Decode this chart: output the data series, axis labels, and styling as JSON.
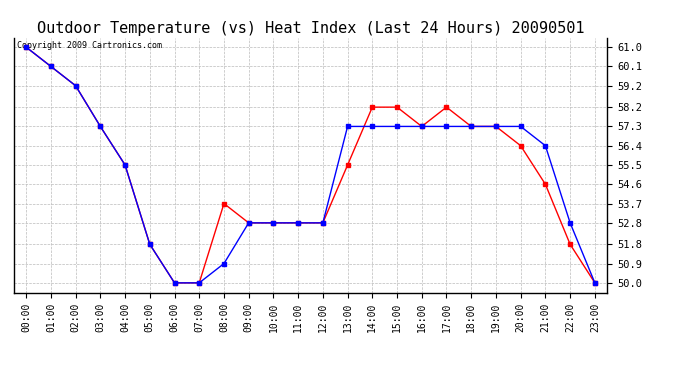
{
  "title": "Outdoor Temperature (vs) Heat Index (Last 24 Hours) 20090501",
  "copyright": "Copyright 2009 Cartronics.com",
  "hours": [
    "00:00",
    "01:00",
    "02:00",
    "03:00",
    "04:00",
    "05:00",
    "06:00",
    "07:00",
    "08:00",
    "09:00",
    "10:00",
    "11:00",
    "12:00",
    "13:00",
    "14:00",
    "15:00",
    "16:00",
    "17:00",
    "18:00",
    "19:00",
    "20:00",
    "21:00",
    "22:00",
    "23:00"
  ],
  "temp": [
    61.0,
    60.1,
    59.2,
    57.3,
    55.5,
    51.8,
    50.0,
    50.0,
    53.7,
    52.8,
    52.8,
    52.8,
    52.8,
    55.5,
    58.2,
    58.2,
    57.3,
    58.2,
    57.3,
    57.3,
    56.4,
    54.6,
    51.8,
    50.0
  ],
  "heat_index": [
    61.0,
    60.1,
    59.2,
    57.3,
    55.5,
    51.8,
    50.0,
    50.0,
    50.9,
    52.8,
    52.8,
    52.8,
    52.8,
    57.3,
    57.3,
    57.3,
    57.3,
    57.3,
    57.3,
    57.3,
    57.3,
    56.4,
    52.8,
    50.0
  ],
  "temp_color": "#ff0000",
  "heat_index_color": "#0000ff",
  "bg_color": "#ffffff",
  "plot_bg_color": "#ffffff",
  "grid_color": "#bbbbbb",
  "title_fontsize": 11,
  "yticks": [
    50.0,
    50.9,
    51.8,
    52.8,
    53.7,
    54.6,
    55.5,
    56.4,
    57.3,
    58.2,
    59.2,
    60.1,
    61.0
  ],
  "ymin": 49.55,
  "ymax": 61.45
}
